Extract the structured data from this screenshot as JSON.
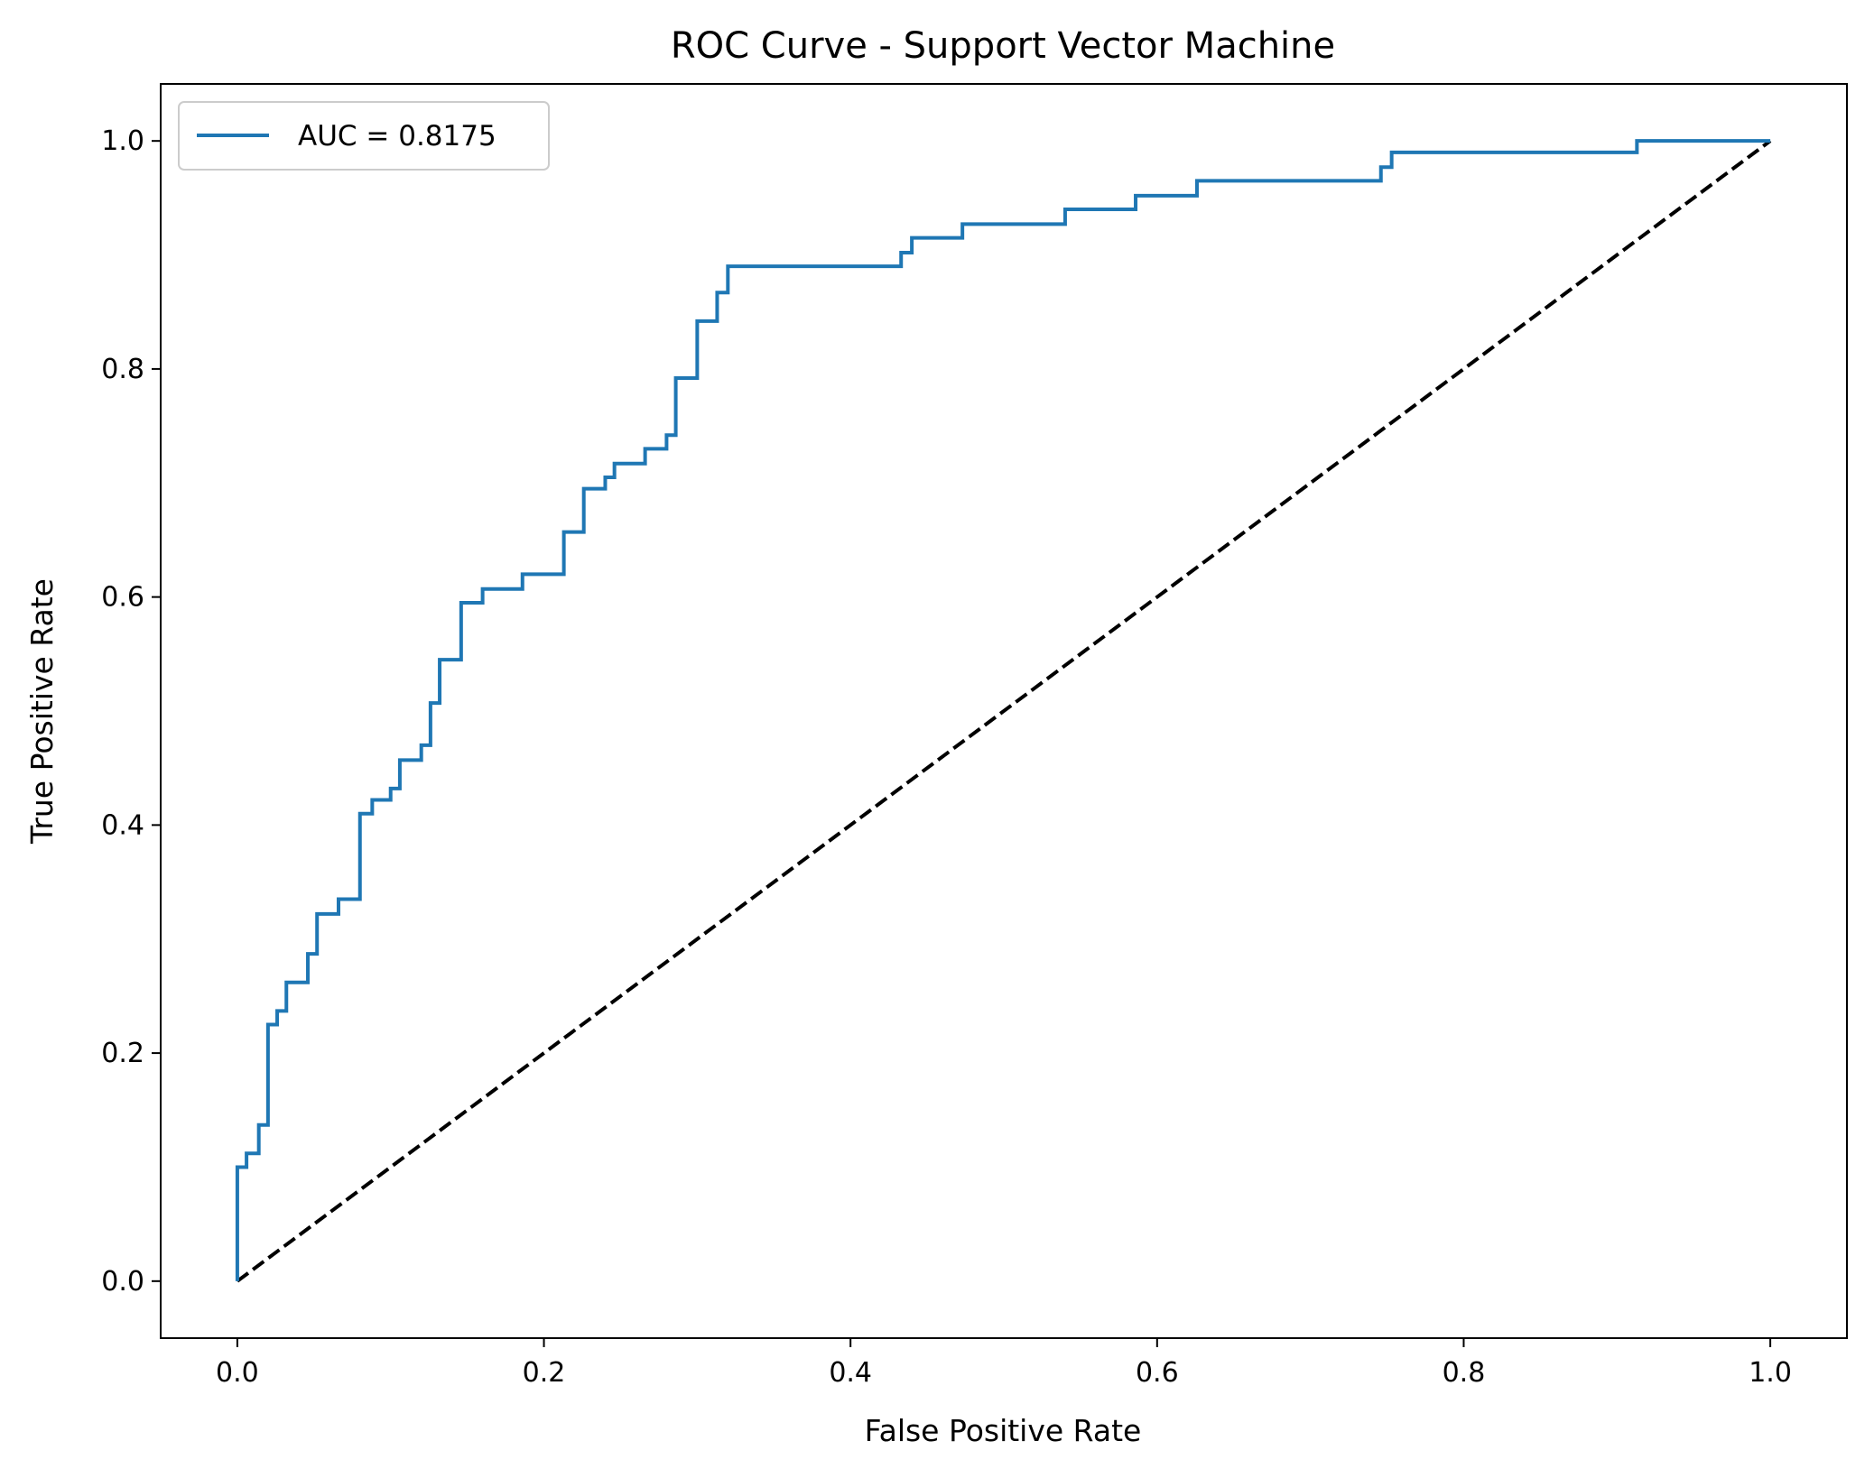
{
  "chart_data": {
    "type": "line",
    "title": "ROC Curve - Support Vector Machine",
    "xlabel": "False Positive Rate",
    "ylabel": "True Positive Rate",
    "xlim": [
      -0.05,
      1.05
    ],
    "ylim": [
      -0.05,
      1.05
    ],
    "xticks": [
      0.0,
      0.2,
      0.4,
      0.6,
      0.8,
      1.0
    ],
    "yticks": [
      0.0,
      0.2,
      0.4,
      0.6,
      0.8,
      1.0
    ],
    "xtick_labels": [
      "0.0",
      "0.2",
      "0.4",
      "0.6",
      "0.8",
      "1.0"
    ],
    "ytick_labels": [
      "0.0",
      "0.2",
      "0.4",
      "0.6",
      "0.8",
      "1.0"
    ],
    "grid": false,
    "legend_position": "top-left",
    "series": [
      {
        "name": "AUC = 0.8175",
        "color": "#1f77b4",
        "style": "solid",
        "step": true,
        "points": [
          [
            0.0,
            0.0
          ],
          [
            0.0,
            0.1
          ],
          [
            0.006,
            0.1
          ],
          [
            0.006,
            0.112
          ],
          [
            0.014,
            0.112
          ],
          [
            0.014,
            0.137
          ],
          [
            0.02,
            0.137
          ],
          [
            0.02,
            0.225
          ],
          [
            0.026,
            0.225
          ],
          [
            0.026,
            0.237
          ],
          [
            0.032,
            0.237
          ],
          [
            0.032,
            0.262
          ],
          [
            0.046,
            0.262
          ],
          [
            0.046,
            0.287
          ],
          [
            0.052,
            0.287
          ],
          [
            0.052,
            0.322
          ],
          [
            0.066,
            0.322
          ],
          [
            0.066,
            0.335
          ],
          [
            0.08,
            0.335
          ],
          [
            0.08,
            0.41
          ],
          [
            0.088,
            0.41
          ],
          [
            0.088,
            0.422
          ],
          [
            0.1,
            0.422
          ],
          [
            0.1,
            0.432
          ],
          [
            0.106,
            0.432
          ],
          [
            0.106,
            0.457
          ],
          [
            0.12,
            0.457
          ],
          [
            0.12,
            0.47
          ],
          [
            0.126,
            0.47
          ],
          [
            0.126,
            0.507
          ],
          [
            0.132,
            0.507
          ],
          [
            0.132,
            0.545
          ],
          [
            0.146,
            0.545
          ],
          [
            0.146,
            0.595
          ],
          [
            0.16,
            0.595
          ],
          [
            0.16,
            0.607
          ],
          [
            0.186,
            0.607
          ],
          [
            0.186,
            0.62
          ],
          [
            0.213,
            0.62
          ],
          [
            0.213,
            0.657
          ],
          [
            0.226,
            0.657
          ],
          [
            0.226,
            0.695
          ],
          [
            0.24,
            0.695
          ],
          [
            0.24,
            0.705
          ],
          [
            0.246,
            0.705
          ],
          [
            0.246,
            0.717
          ],
          [
            0.266,
            0.717
          ],
          [
            0.266,
            0.73
          ],
          [
            0.28,
            0.73
          ],
          [
            0.28,
            0.742
          ],
          [
            0.286,
            0.742
          ],
          [
            0.286,
            0.792
          ],
          [
            0.3,
            0.792
          ],
          [
            0.3,
            0.842
          ],
          [
            0.313,
            0.842
          ],
          [
            0.313,
            0.867
          ],
          [
            0.32,
            0.867
          ],
          [
            0.32,
            0.89
          ],
          [
            0.433,
            0.89
          ],
          [
            0.433,
            0.902
          ],
          [
            0.44,
            0.902
          ],
          [
            0.44,
            0.915
          ],
          [
            0.473,
            0.915
          ],
          [
            0.473,
            0.927
          ],
          [
            0.54,
            0.927
          ],
          [
            0.54,
            0.94
          ],
          [
            0.586,
            0.94
          ],
          [
            0.586,
            0.952
          ],
          [
            0.626,
            0.952
          ],
          [
            0.626,
            0.965
          ],
          [
            0.746,
            0.965
          ],
          [
            0.746,
            0.977
          ],
          [
            0.753,
            0.977
          ],
          [
            0.753,
            0.99
          ],
          [
            0.913,
            0.99
          ],
          [
            0.913,
            1.0
          ],
          [
            1.0,
            1.0
          ]
        ]
      },
      {
        "color": "#000000",
        "style": "dashed",
        "step": false,
        "points": [
          [
            0.0,
            0.0
          ],
          [
            1.0,
            1.0
          ]
        ]
      }
    ]
  }
}
